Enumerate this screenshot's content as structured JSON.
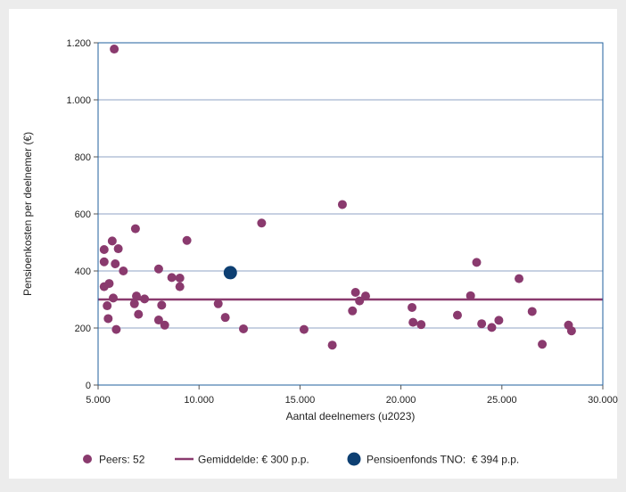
{
  "chart_data": {
    "type": "scatter",
    "xlabel": "Aantal deelnemers (u2023)",
    "ylabel": "Pensioenkosten per deelnemer (€)",
    "xlim": [
      5000,
      30000
    ],
    "ylim": [
      0,
      1200
    ],
    "x_ticks": [
      5000,
      10000,
      15000,
      20000,
      25000,
      30000
    ],
    "x_tick_labels": [
      "5.000",
      "10.000",
      "15.000",
      "20.000",
      "25.000",
      "30.000"
    ],
    "y_ticks": [
      0,
      200,
      400,
      600,
      800,
      1000,
      1200
    ],
    "y_tick_labels": [
      "0",
      "200",
      "400",
      "600",
      "800",
      "1.000",
      "1.200"
    ],
    "grid": "horizontal",
    "legend_position": "bottom",
    "colors": {
      "peers": "#8a3a6e",
      "average": "#8a3a6e",
      "tno": "#0d3f72",
      "grid": "#8fa3c4",
      "plot_border": "#1f5f9e"
    },
    "series": [
      {
        "name": "Peers: 52",
        "kind": "points",
        "points": [
          [
            5300,
            475
          ],
          [
            5300,
            432
          ],
          [
            5300,
            345
          ],
          [
            5450,
            278
          ],
          [
            5500,
            233
          ],
          [
            5550,
            356
          ],
          [
            5700,
            505
          ],
          [
            5750,
            305
          ],
          [
            5800,
            1178
          ],
          [
            5850,
            425
          ],
          [
            5900,
            195
          ],
          [
            6000,
            478
          ],
          [
            6250,
            400
          ],
          [
            6800,
            285
          ],
          [
            6850,
            548
          ],
          [
            6900,
            312
          ],
          [
            7000,
            248
          ],
          [
            7300,
            302
          ],
          [
            8000,
            407
          ],
          [
            8000,
            228
          ],
          [
            8150,
            280
          ],
          [
            8300,
            210
          ],
          [
            8650,
            377
          ],
          [
            9050,
            375
          ],
          [
            9050,
            345
          ],
          [
            9400,
            507
          ],
          [
            10950,
            285
          ],
          [
            11300,
            237
          ],
          [
            12200,
            197
          ],
          [
            13100,
            568
          ],
          [
            15200,
            195
          ],
          [
            16600,
            140
          ],
          [
            17100,
            633
          ],
          [
            17600,
            260
          ],
          [
            17750,
            325
          ],
          [
            17950,
            295
          ],
          [
            18250,
            312
          ],
          [
            20550,
            272
          ],
          [
            20600,
            220
          ],
          [
            21000,
            212
          ],
          [
            22800,
            245
          ],
          [
            23450,
            313
          ],
          [
            23750,
            430
          ],
          [
            24000,
            215
          ],
          [
            24500,
            202
          ],
          [
            24850,
            227
          ],
          [
            25850,
            373
          ],
          [
            26500,
            258
          ],
          [
            27000,
            143
          ],
          [
            28300,
            210
          ],
          [
            28450,
            190
          ]
        ]
      },
      {
        "name": "Gemiddelde: € 300 p.p.",
        "kind": "hline",
        "y": 300
      },
      {
        "name": "Pensioenfonds TNO:  € 394 p.p.",
        "kind": "highlight",
        "points": [
          [
            11550,
            394
          ]
        ]
      }
    ]
  }
}
